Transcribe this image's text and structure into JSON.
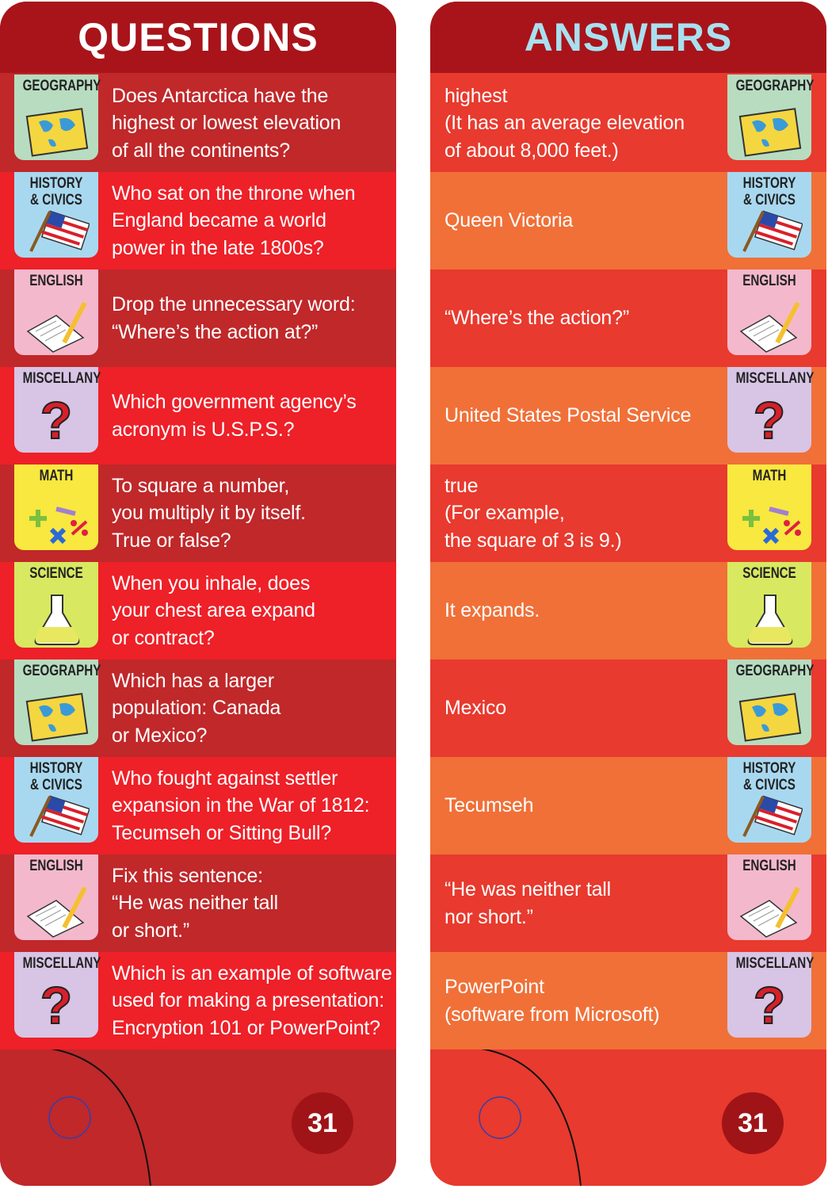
{
  "questions": {
    "title": "QUESTIONS",
    "rows": [
      {
        "category": [
          "GEOGRAPHY"
        ],
        "text": [
          "Does Antarctica have the",
          "highest or lowest elevation",
          "of all the continents?"
        ]
      },
      {
        "category": [
          "HISTORY",
          "& CIVICS"
        ],
        "text": [
          "Who sat on the throne when",
          "England became a world",
          "power in the late 1800s?"
        ]
      },
      {
        "category": [
          "ENGLISH"
        ],
        "text": [
          "Drop the unnecessary word:",
          "“Where’s the action at?”"
        ]
      },
      {
        "category": [
          "MISCELLANY"
        ],
        "text": [
          "Which government agency’s",
          "acronym is U.S.P.S.?"
        ]
      },
      {
        "category": [
          "MATH"
        ],
        "text": [
          "To square a number,",
          "you multiply it by itself.",
          "True or false?"
        ]
      },
      {
        "category": [
          "SCIENCE"
        ],
        "text": [
          "When you inhale, does",
          "your chest area expand",
          "or contract?"
        ]
      },
      {
        "category": [
          "GEOGRAPHY"
        ],
        "text": [
          "Which has a larger",
          "population: Canada",
          "or Mexico?"
        ]
      },
      {
        "category": [
          "HISTORY",
          "& CIVICS"
        ],
        "text": [
          "Who fought against settler",
          "expansion in the War of 1812:",
          "Tecumseh or Sitting Bull?"
        ]
      },
      {
        "category": [
          "ENGLISH"
        ],
        "text": [
          "Fix this sentence:",
          "“He was neither tall",
          "or short.”"
        ]
      },
      {
        "category": [
          "MISCELLANY"
        ],
        "text": [
          "Which is an example of software",
          "used for making a presentation:",
          "Encryption 101 or PowerPoint?"
        ]
      }
    ]
  },
  "answers": {
    "title": "ANSWERS",
    "rows": [
      {
        "text": [
          "highest",
          "(It has an average elevation",
          "of about 8,000 feet.)"
        ]
      },
      {
        "text": [
          "Queen Victoria"
        ]
      },
      {
        "text": [
          "“Where’s the action?”"
        ]
      },
      {
        "text": [
          "United States Postal Service"
        ]
      },
      {
        "text": [
          "true",
          "(For example,",
          "the square of 3 is 9.)"
        ]
      },
      {
        "text": [
          "It expands."
        ]
      },
      {
        "text": [
          "Mexico"
        ]
      },
      {
        "text": [
          "Tecumseh"
        ]
      },
      {
        "text": [
          "“He was neither tall",
          "nor short.”"
        ]
      },
      {
        "text": [
          "PowerPoint",
          "(software from Microsoft)"
        ]
      }
    ]
  },
  "page_number": "31"
}
